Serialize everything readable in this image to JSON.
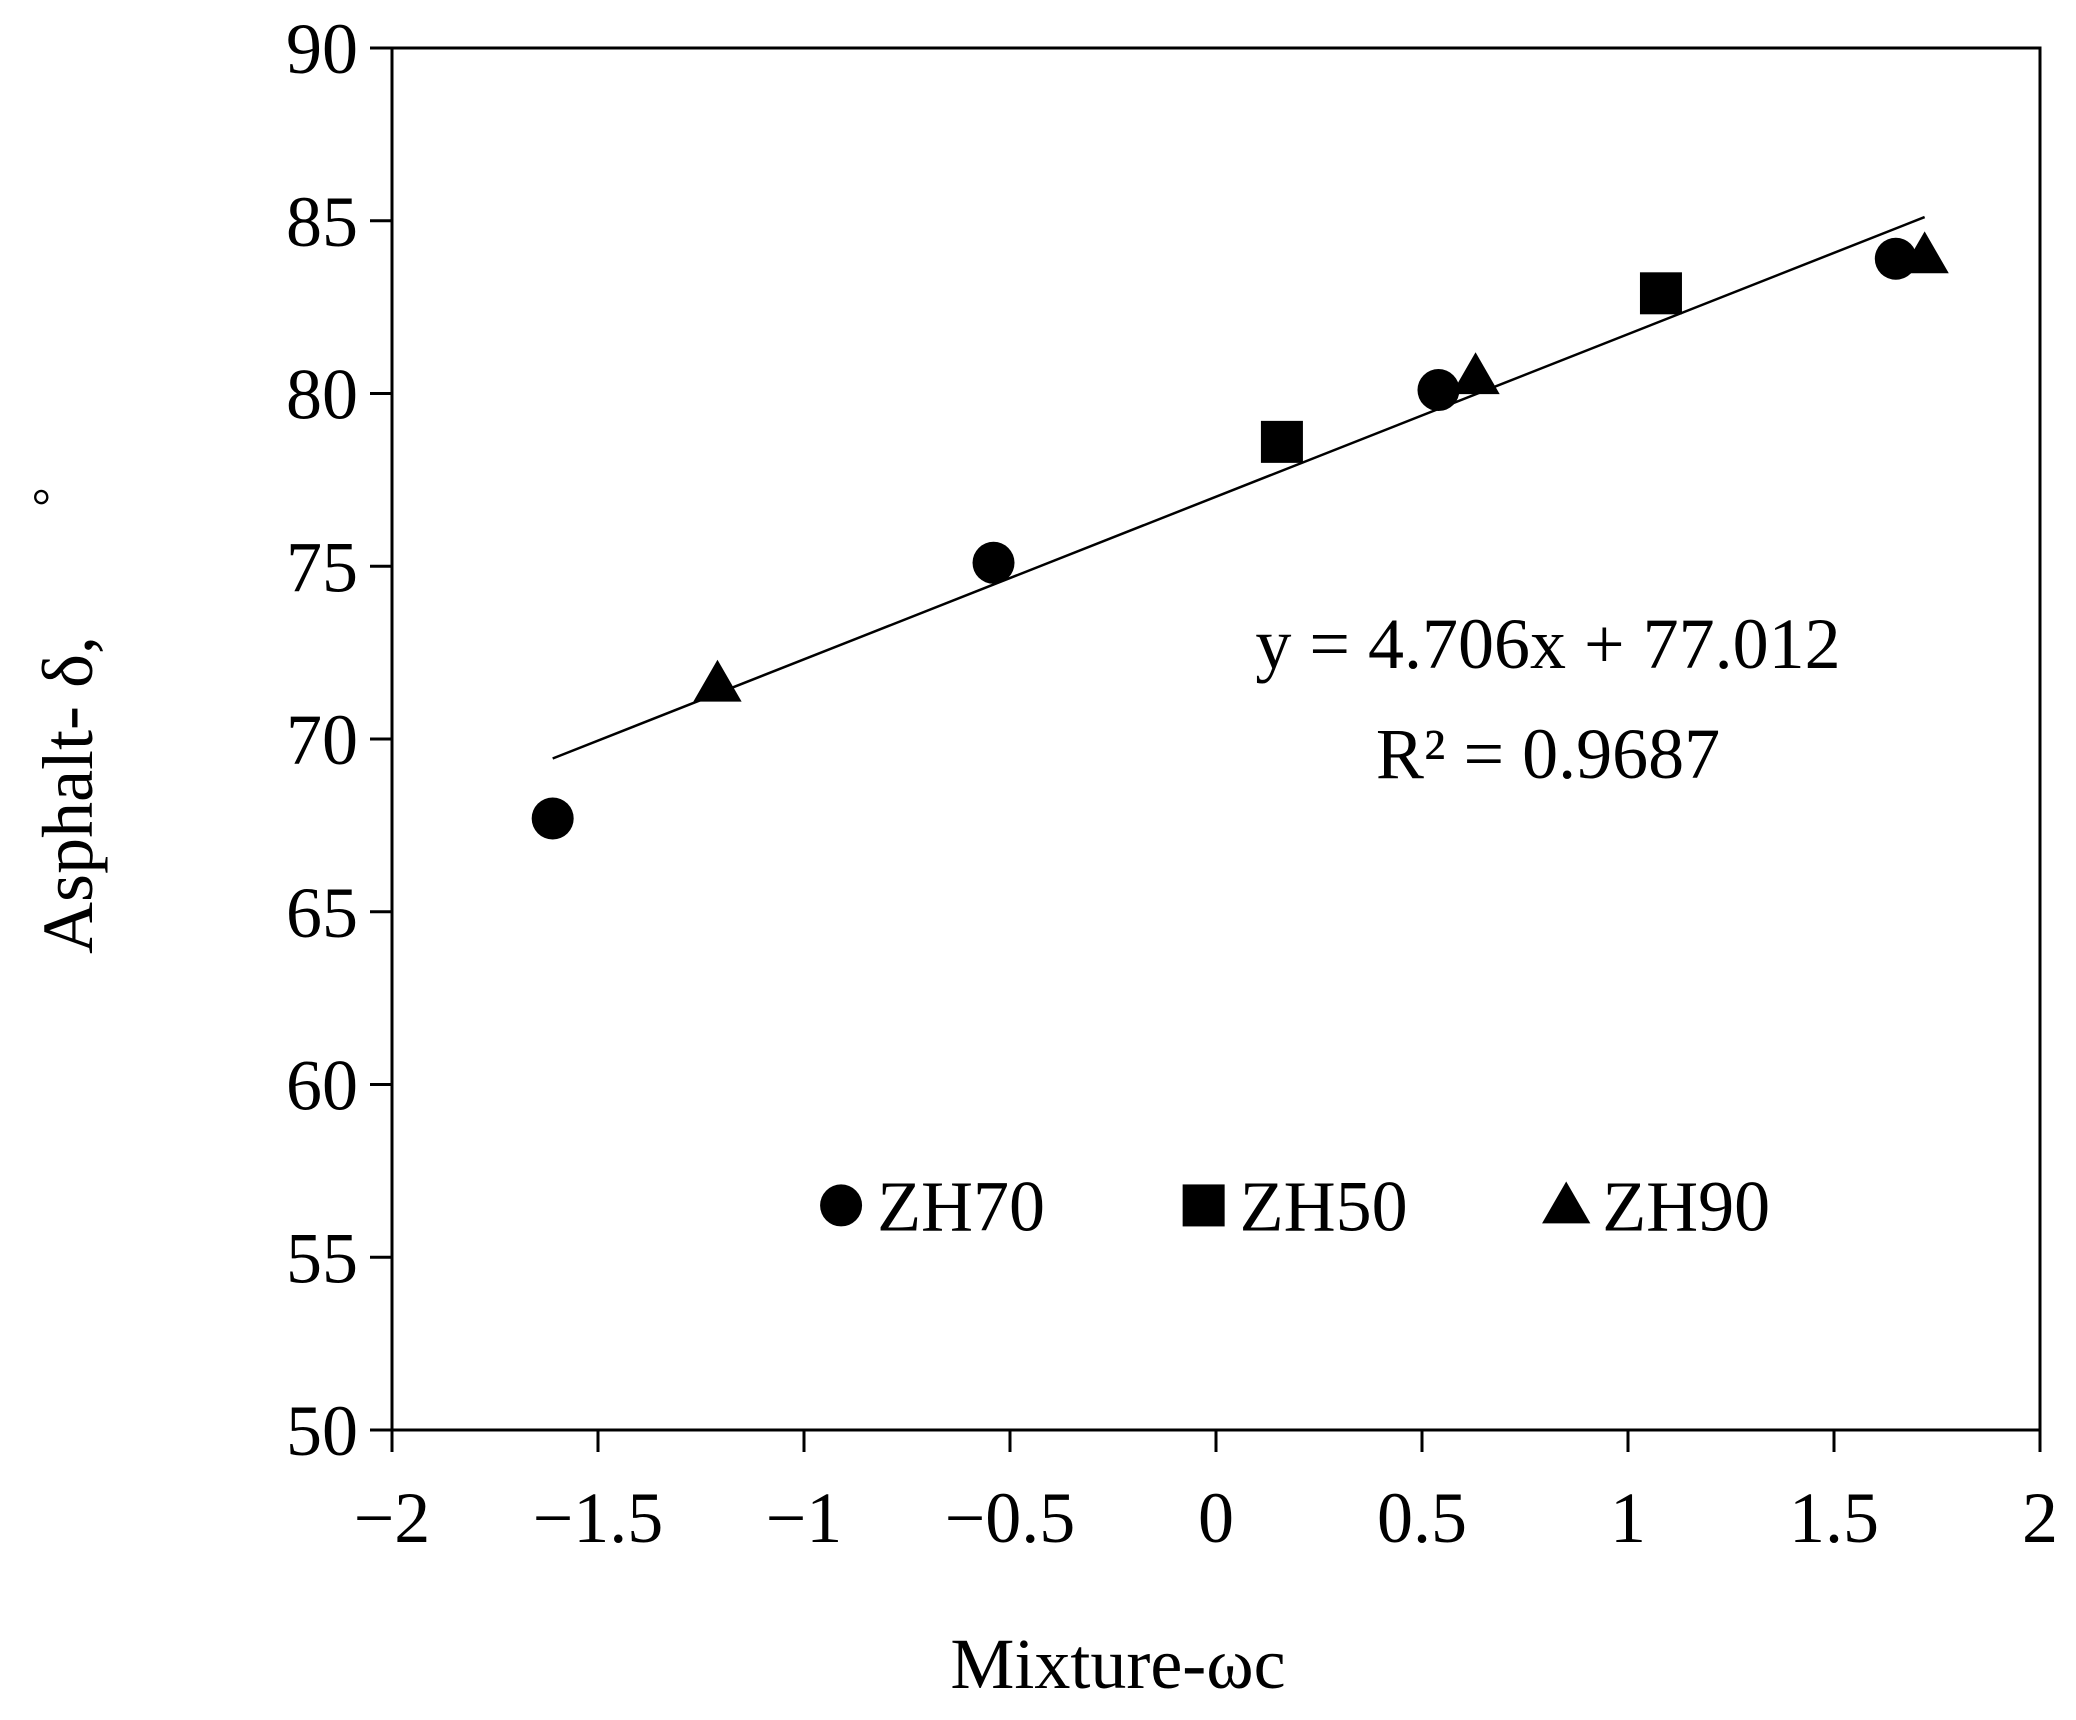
{
  "chart_data": {
    "type": "scatter",
    "xlabel": "Mixture-ωc",
    "ylabel": "Asphalt- δ,",
    "ylabel_unit": "°",
    "xlim": [
      -2,
      2
    ],
    "ylim": [
      50,
      90
    ],
    "xticks": [
      -2,
      -1.5,
      -1,
      -0.5,
      0,
      0.5,
      1,
      1.5,
      2
    ],
    "xtick_labels": [
      "−2",
      "−1.5",
      "−1",
      "−0.5",
      "0",
      "0.5",
      "1",
      "1.5",
      "2"
    ],
    "yticks": [
      50,
      55,
      60,
      65,
      70,
      75,
      80,
      85,
      90
    ],
    "ytick_labels": [
      "50",
      "55",
      "60",
      "65",
      "70",
      "75",
      "80",
      "85",
      "90"
    ],
    "grid": false,
    "legend_position": "bottom-center inside plot",
    "series": [
      {
        "name": "ZH70",
        "marker": "circle",
        "color": "#000000",
        "points": [
          [
            -1.61,
            67.7
          ],
          [
            -0.54,
            75.1
          ],
          [
            0.54,
            80.1
          ],
          [
            1.65,
            83.9
          ]
        ]
      },
      {
        "name": "ZH50",
        "marker": "square",
        "color": "#000000",
        "points": [
          [
            0.16,
            78.6
          ],
          [
            1.08,
            82.9
          ]
        ]
      },
      {
        "name": "ZH90",
        "marker": "triangle",
        "color": "#000000",
        "points": [
          [
            -1.21,
            71.6
          ],
          [
            0.63,
            80.5
          ],
          [
            1.72,
            84.0
          ]
        ]
      }
    ],
    "trendline": {
      "slope": 4.706,
      "intercept": 77.012,
      "x_range": [
        -1.61,
        1.72
      ],
      "equation": "y = 4.706x + 77.012",
      "r2": "R² = 0.9687"
    }
  }
}
